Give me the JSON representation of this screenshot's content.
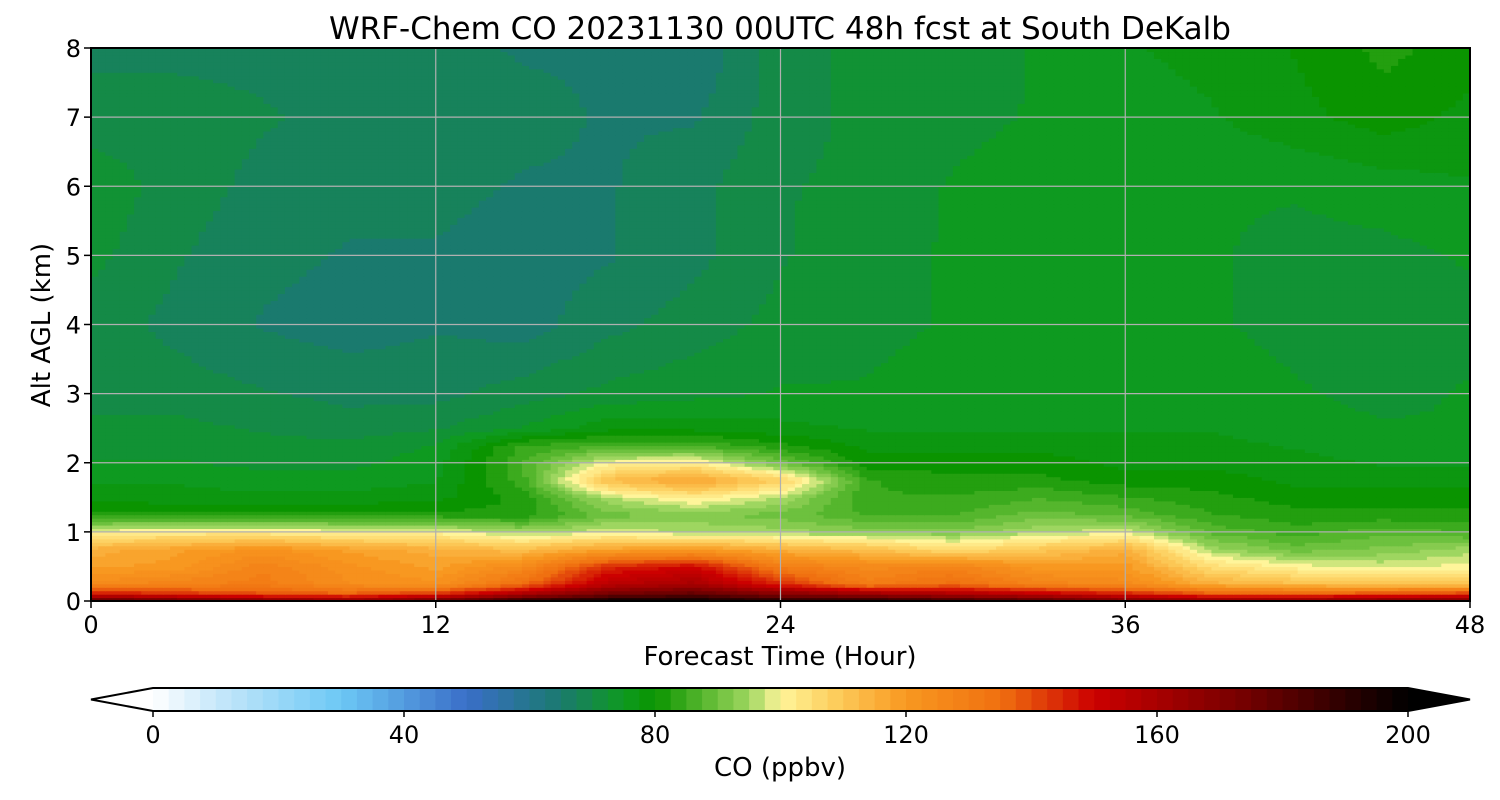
{
  "chart_data": {
    "type": "heatmap",
    "title": "WRF-Chem CO  20231130 00UTC 48h fcst at South DeKalb",
    "xlabel": "Forecast Time (Hour)",
    "ylabel": "Alt AGL (km)",
    "xlim": [
      0,
      48
    ],
    "ylim": [
      0,
      8
    ],
    "x_ticks": [
      0,
      12,
      24,
      36,
      48
    ],
    "y_ticks": [
      0,
      1,
      2,
      3,
      4,
      5,
      6,
      7,
      8
    ],
    "grid": true,
    "x": [
      0,
      3,
      6,
      9,
      12,
      15,
      18,
      21,
      24,
      27,
      30,
      33,
      36,
      39,
      42,
      45,
      48
    ],
    "y": [
      0.0,
      0.1,
      0.25,
      0.5,
      0.75,
      1.0,
      1.25,
      1.5,
      1.75,
      2.0,
      2.25,
      2.5,
      3.0,
      4.0,
      5.0,
      6.0,
      7.0,
      8.0
    ],
    "z": [
      [
        185,
        180,
        175,
        170,
        180,
        195,
        200,
        200,
        195,
        195,
        190,
        185,
        175,
        170,
        170,
        175,
        175
      ],
      [
        150,
        145,
        140,
        138,
        145,
        160,
        175,
        180,
        170,
        165,
        160,
        155,
        148,
        140,
        140,
        142,
        145
      ],
      [
        125,
        128,
        130,
        124,
        122,
        135,
        155,
        160,
        145,
        130,
        135,
        128,
        125,
        115,
        112,
        110,
        110
      ],
      [
        118,
        120,
        128,
        122,
        118,
        125,
        145,
        150,
        130,
        125,
        128,
        120,
        120,
        105,
        100,
        98,
        100
      ],
      [
        115,
        118,
        122,
        118,
        115,
        112,
        118,
        120,
        115,
        112,
        105,
        110,
        115,
        95,
        90,
        92,
        95
      ],
      [
        100,
        102,
        102,
        100,
        100,
        95,
        98,
        96,
        95,
        93,
        92,
        96,
        98,
        88,
        85,
        88,
        86
      ],
      [
        82,
        82,
        82,
        82,
        82,
        82,
        90,
        92,
        90,
        86,
        86,
        90,
        88,
        84,
        82,
        82,
        82
      ],
      [
        78,
        77,
        77,
        77,
        78,
        82,
        96,
        102,
        96,
        84,
        84,
        86,
        84,
        82,
        80,
        80,
        80
      ],
      [
        76,
        76,
        75,
        75,
        76,
        85,
        112,
        118,
        108,
        84,
        82,
        82,
        80,
        80,
        78,
        78,
        78
      ],
      [
        74,
        74,
        73,
        73,
        75,
        86,
        100,
        102,
        90,
        80,
        80,
        80,
        78,
        78,
        77,
        76,
        76
      ],
      [
        73,
        73,
        72,
        72,
        74,
        84,
        86,
        86,
        82,
        78,
        78,
        78,
        77,
        77,
        76,
        75,
        75
      ],
      [
        72,
        72,
        71,
        70,
        71,
        74,
        78,
        78,
        77,
        76,
        76,
        76,
        76,
        76,
        75,
        74,
        74
      ],
      [
        70,
        70,
        69,
        68,
        68,
        70,
        72,
        73,
        74,
        74,
        75,
        75,
        75,
        75,
        74,
        73,
        74
      ],
      [
        70,
        68,
        66,
        65,
        66,
        65,
        68,
        70,
        72,
        73,
        74,
        74,
        74,
        74,
        73,
        72,
        73
      ],
      [
        72,
        69,
        67,
        66,
        66,
        65,
        66,
        68,
        71,
        73,
        74,
        75,
        74,
        74,
        73,
        73,
        74
      ],
      [
        73,
        70,
        68,
        67,
        67,
        66,
        66,
        68,
        71,
        72,
        74,
        75,
        74,
        74,
        74,
        75,
        76
      ],
      [
        70,
        70,
        69,
        68,
        68,
        67,
        66,
        66,
        70,
        72,
        73,
        74,
        75,
        76,
        78,
        80,
        78
      ],
      [
        68,
        68,
        68,
        67,
        67,
        66,
        66,
        64,
        70,
        72,
        72,
        74,
        76,
        77,
        79,
        82,
        80
      ]
    ],
    "colorbar": {
      "label": "CO  (ppbv)",
      "min": 0,
      "max": 200,
      "ticks": [
        0,
        40,
        80,
        120,
        160,
        200
      ],
      "extend": "both",
      "colors": [
        "#ffffff",
        "#c8e8fa",
        "#6cc8f5",
        "#3a6ec8",
        "#1a7a6e",
        "#0e9a20",
        "#0a9400",
        "#5ab830",
        "#9ed660",
        "#fff59a",
        "#fdd060",
        "#f89820",
        "#f07010",
        "#cc0000",
        "#700000",
        "#000000"
      ],
      "stops": [
        0,
        10,
        30,
        50,
        65,
        75,
        80,
        88,
        95,
        100,
        108,
        120,
        135,
        150,
        175,
        200
      ]
    }
  }
}
